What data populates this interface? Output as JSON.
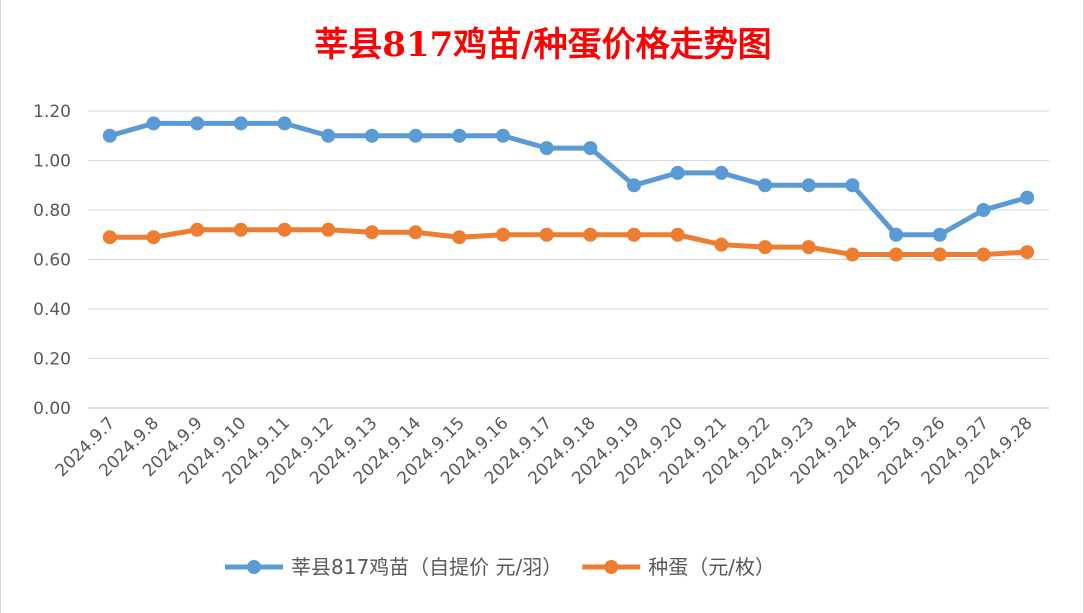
{
  "chart_data": {
    "type": "line",
    "title": "莘县817鸡苗/种蛋价格走势图",
    "xlabel": "",
    "ylabel": "",
    "categories": [
      "2024.9.7",
      "2024.9.8",
      "2024.9.9",
      "2024.9.10",
      "2024.9.11",
      "2024.9.12",
      "2024.9.13",
      "2024.9.14",
      "2024.9.15",
      "2024.9.16",
      "2024.9.17",
      "2024.9.18",
      "2024.9.19",
      "2024.9.20",
      "2024.9.21",
      "2024.9.22",
      "2024.9.23",
      "2024.9.24",
      "2024.9.25",
      "2024.9.26",
      "2024.9.27",
      "2024.9.28"
    ],
    "ylim": [
      0,
      1.2
    ],
    "yticks": [
      "0.00",
      "0.20",
      "0.40",
      "0.60",
      "0.80",
      "1.00",
      "1.20"
    ],
    "grid": true,
    "legend_position": "bottom",
    "series": [
      {
        "name": "莘县817鸡苗（自提价 元/羽）",
        "color": "#5b9bd5",
        "values": [
          1.1,
          1.15,
          1.15,
          1.15,
          1.15,
          1.1,
          1.1,
          1.1,
          1.1,
          1.1,
          1.05,
          1.05,
          0.9,
          0.95,
          0.95,
          0.9,
          0.9,
          0.9,
          0.7,
          0.7,
          0.8,
          0.85
        ]
      },
      {
        "name": "种蛋（元/枚）",
        "color": "#ed7d31",
        "values": [
          0.69,
          0.69,
          0.72,
          0.72,
          0.72,
          0.72,
          0.71,
          0.71,
          0.69,
          0.7,
          0.7,
          0.7,
          0.7,
          0.7,
          0.66,
          0.65,
          0.65,
          0.62,
          0.62,
          0.62,
          0.62,
          0.63
        ]
      }
    ]
  }
}
